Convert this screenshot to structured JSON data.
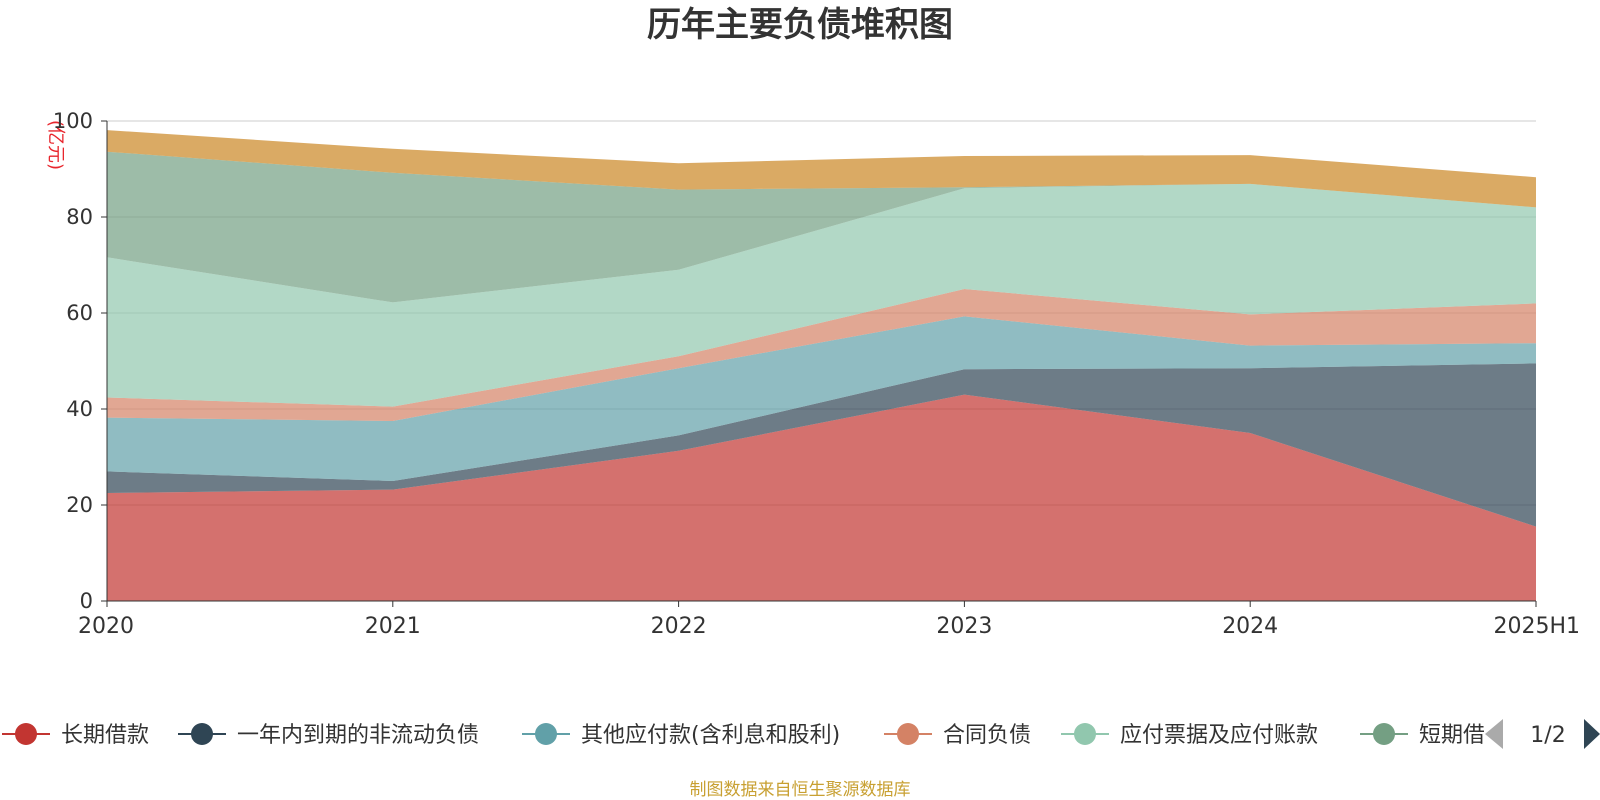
{
  "chart_data": {
    "type": "area",
    "stacked": true,
    "title": "历年主要负债堆积图",
    "unit": "(亿元)",
    "x": [
      "2020",
      "2021",
      "2022",
      "2023",
      "2024",
      "2025H1"
    ],
    "ylim": [
      0,
      100
    ],
    "yticks": [
      0,
      20,
      40,
      60,
      80,
      100
    ],
    "grid": true,
    "legend_position": "bottom",
    "series": [
      {
        "name": "长期借款",
        "color": "#c23531",
        "values": [
          22.5,
          23.2,
          31.3,
          43.0,
          35.0,
          15.5
        ]
      },
      {
        "name": "一年内到期的非流动负债",
        "color": "#2f4554",
        "values": [
          4.5,
          1.8,
          3.2,
          5.3,
          13.5,
          34.0
        ]
      },
      {
        "name": "其他应付款(含利息和股利)",
        "color": "#61a0a8",
        "values": [
          11.2,
          12.5,
          14.0,
          11.0,
          4.7,
          4.2
        ]
      },
      {
        "name": "合同负债",
        "color": "#d48265",
        "values": [
          4.2,
          3.0,
          2.5,
          5.7,
          6.5,
          8.3
        ]
      },
      {
        "name": "应付票据及应付账款",
        "color": "#91c7ae",
        "values": [
          29.2,
          21.7,
          18.0,
          21.0,
          27.2,
          20.0
        ]
      },
      {
        "name": "短期借款",
        "color": "#749f83",
        "values": [
          22.0,
          27.0,
          16.7,
          0.2,
          0.0,
          0.0
        ]
      },
      {
        "name": "",
        "color": "#ca8622",
        "values": [
          4.5,
          5.0,
          5.5,
          6.5,
          6.0,
          6.3
        ]
      }
    ]
  },
  "legend": {
    "page_label": "1/2",
    "visible_labels": [
      "长期借款",
      "一年内到期的非流动负债",
      "其他应付款(含利息和股利)",
      "合同负债",
      "应付票据及应付账款",
      "短期借"
    ]
  },
  "source": "制图数据来自恒生聚源数据库"
}
